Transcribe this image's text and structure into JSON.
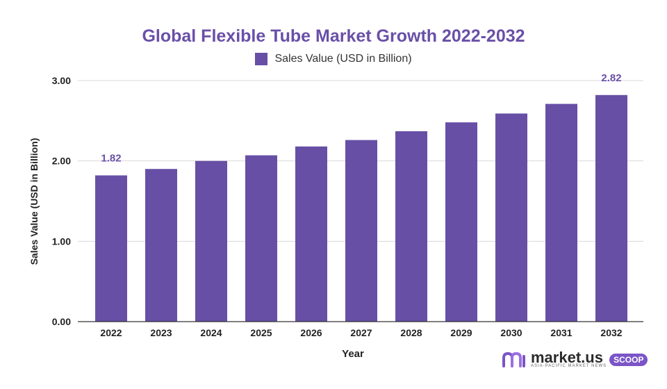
{
  "chart_data": {
    "type": "bar",
    "title": "Global Flexible Tube Market Growth 2022-2032",
    "xlabel": "Year",
    "ylabel": "Sales Value (USD in Billion)",
    "ylim": [
      0,
      3
    ],
    "yticks": [
      "0.00",
      "1.00",
      "2.00",
      "3.00"
    ],
    "grid": true,
    "legend_position": "top-center",
    "categories": [
      "2022",
      "2023",
      "2024",
      "2025",
      "2026",
      "2027",
      "2028",
      "2029",
      "2030",
      "2031",
      "2032"
    ],
    "series": [
      {
        "name": "Sales Value (USD in Billion)",
        "color": "#674fa6",
        "values": [
          1.82,
          1.9,
          2.0,
          2.07,
          2.18,
          2.26,
          2.37,
          2.48,
          2.59,
          2.71,
          2.82
        ]
      }
    ],
    "data_labels": [
      {
        "category": "2022",
        "text": "1.82"
      },
      {
        "category": "2032",
        "text": "2.82"
      }
    ]
  },
  "brand": {
    "name": "market.us",
    "tagline": "ASIA-PACIFIC MARKET NEWS",
    "badge": "SCOOP",
    "icon": "market-us-logo-icon"
  }
}
